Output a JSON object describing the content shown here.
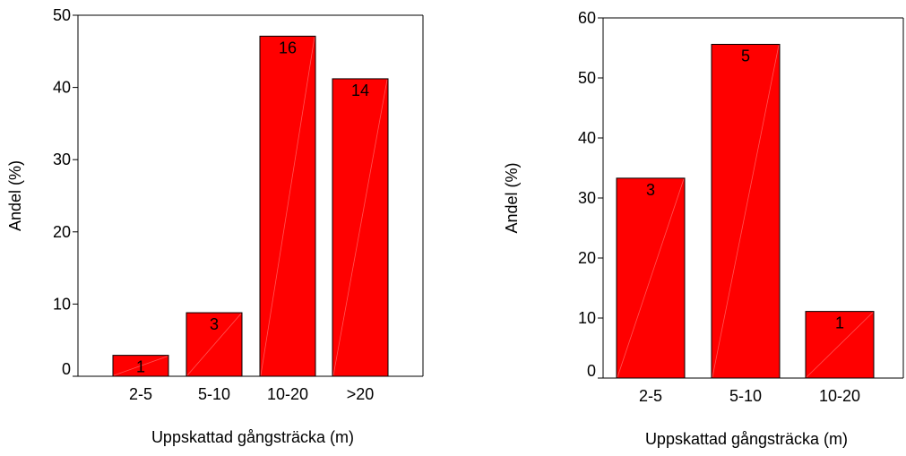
{
  "colors": {
    "bar": "#ff0000",
    "stroke": "#000000"
  },
  "chart_data": [
    {
      "type": "bar",
      "title": "",
      "xlabel": "Uppskattad gångsträcka (m)",
      "ylabel": "Andel (%)",
      "ylim": [
        0,
        50
      ],
      "yticks": [
        "0",
        "10",
        "20",
        "30",
        "40",
        "50"
      ],
      "categories": [
        "2-5",
        "5-10",
        "10-20",
        ">20"
      ],
      "values": [
        2.9,
        8.8,
        47.1,
        41.2
      ],
      "bar_labels": [
        "1",
        "3",
        "16",
        "14"
      ],
      "grid": false
    },
    {
      "type": "bar",
      "title": "",
      "xlabel": "Uppskattad gångsträcka (m)",
      "ylabel": "Andel (%)",
      "ylim": [
        0,
        60
      ],
      "yticks": [
        "0",
        "10",
        "20",
        "30",
        "40",
        "50",
        "60"
      ],
      "categories": [
        "2-5",
        "5-10",
        "10-20"
      ],
      "values": [
        33.3,
        55.6,
        11.1
      ],
      "bar_labels": [
        "3",
        "5",
        "1"
      ],
      "grid": false
    }
  ]
}
